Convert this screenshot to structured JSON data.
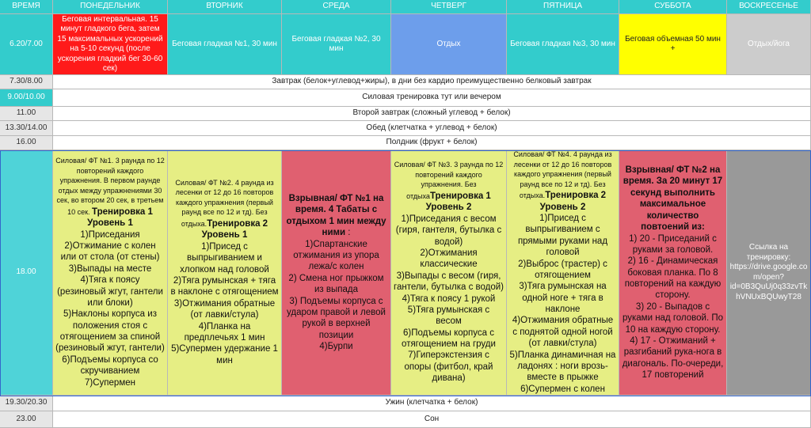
{
  "header": [
    "ВРЕМЯ",
    "ПОНЕДЕЛЬНИК",
    "ВТОРНИК",
    "СРЕДА",
    "ЧЕТВЕРГ",
    "ПЯТНИЦА",
    "СУББОТА",
    "ВОСКРЕСЕНЬЕ"
  ],
  "rows": [
    {
      "time": "6.20/7.00",
      "cells": [
        [
          {
            "text": "Беговая интервальная. 15 минут гладкого бега, затем 15 максимальных ускорений на 5-10 секунд (после ускорения гладкий бег 30-60 сек)",
            "style": "plain"
          }
        ],
        [
          {
            "text": "Беговая гладкая №1, 30 мин",
            "style": "plain"
          }
        ],
        [
          {
            "text": "Беговая гладкая №2, 30 мин",
            "style": "plain"
          }
        ],
        [
          {
            "text": "Отдых",
            "style": "plain"
          }
        ],
        [
          {
            "text": "Беговая гладкая №3, 30 мин",
            "style": "plain"
          }
        ],
        [
          {
            "text": "Беговая объемная 50 мин +",
            "style": "plain"
          }
        ],
        [
          {
            "text": "Отдых/йога",
            "style": "plain"
          }
        ]
      ]
    },
    {
      "time": "7.30/8.00",
      "span": "Завтрак (белок+углевод+жиры), в дни без кардио преимущественно белковый завтрак"
    },
    {
      "time": "9.00/10.00",
      "span": "Силовая тренировка тут или вечером"
    },
    {
      "time": "11.00",
      "span": "Второй завтрак (сложный углевод + белок)"
    },
    {
      "time": "13.30/14.00",
      "span": "Обед (клетчатка + углевод + белок)"
    },
    {
      "time": "16.00",
      "span": "Полдник (фрукт + белок)"
    },
    {
      "time": "18.00",
      "cells": [
        [
          {
            "text": "Силовая/ ФТ №1.  3 раунда по 12 повторений каждого упражнения. В первом раунде отдых между упражнениями 30 сек, во втором 20 сек, в третьем 10 сек. ",
            "style": "small"
          },
          {
            "text": "Тренировка 1 Уровень 1",
            "style": "bold"
          },
          {
            "text": "1)Приседания",
            "style": "line"
          },
          {
            "text": "2)Отжимание с колен или от стола (от стены)",
            "style": "line"
          },
          {
            "text": "3)Выпады на месте",
            "style": "line"
          },
          {
            "text": "4)Тяга к поясу (резиновый жгут, гантели или блоки)",
            "style": "line"
          },
          {
            "text": "5)Наклоны корпуса из положения стоя с отягощением за спиной (резиновый жгут, гантели)",
            "style": "line"
          },
          {
            "text": "6)Подъемы корпуса со скручиванием",
            "style": "line"
          },
          {
            "text": "7)Супермен",
            "style": "line"
          }
        ],
        [
          {
            "text": "Силовая/ ФТ №2. 4 раунда из лесенки от 12 до 16 повторов каждого упражнения (первый раунд все по 12 и тд). Без отдыха.",
            "style": "small"
          },
          {
            "text": "Тренировка 2 Уровень 1",
            "style": "bold"
          },
          {
            "text": "1)Присед с выпрыгиванием и хлопком над головой",
            "style": "line"
          },
          {
            "text": "2)Тяга румынская + тяга в наклоне с отягощением",
            "style": "line"
          },
          {
            "text": "3)Отжимания обратные (от лавки/стула)",
            "style": "line"
          },
          {
            "text": "4)Планка на предплечьях 1 мин",
            "style": "line"
          },
          {
            "text": "5)Супермен удержание 1 мин",
            "style": "line"
          }
        ],
        [
          {
            "text": "Взрывная/ ФТ №1 на время. 4 Табаты с отдыхом 1 мин между ними",
            "style": "bold"
          },
          {
            "text": " :",
            "style": "inline"
          },
          {
            "text": "1)Спартанские отжимания из упора лежа/с колен",
            "style": "line"
          },
          {
            "text": "2) Смена ног прыжком из выпада",
            "style": "line"
          },
          {
            "text": "3) Подъемы корпуса с ударом правой и левой рукой в верхней позиции",
            "style": "line"
          },
          {
            "text": "4)Бурпи",
            "style": "line"
          }
        ],
        [
          {
            "text": "Силовая/ ФТ №3. 3 раунда по 12 повторений каждого упражнения. Без отдыха",
            "style": "small"
          },
          {
            "text": "Тренировка 1 Уровень 2",
            "style": "bold"
          },
          {
            "text": "1)Приседания с весом (гиря, гантеля, бутылка с водой)",
            "style": "line"
          },
          {
            "text": "2)Отжимания классические",
            "style": "line"
          },
          {
            "text": "3)Выпады с весом (гиря, гантели, бутылка с водой)",
            "style": "line"
          },
          {
            "text": "4)Тяга к поясу 1 рукой",
            "style": "line"
          },
          {
            "text": "5)Тяга румынская с весом",
            "style": "line"
          },
          {
            "text": "6)Подъемы корпуса с отягощением на груди",
            "style": "line"
          },
          {
            "text": "7)Гиперэкстензия с опоры (фитбол, край дивана)",
            "style": "line"
          }
        ],
        [
          {
            "text": "Силовая/ ФТ №4. 4 раунда из лесенки от 12 до 16 повторов каждого упражнения (первый раунд все по 12 и тд). Без отдыха.",
            "style": "small"
          },
          {
            "text": "Тренировка 2 Уровень 2",
            "style": "bold"
          },
          {
            "text": "1)Присед с выпрыгиванием с прямыми руками над головой",
            "style": "line"
          },
          {
            "text": "2)Выброс (трастер) с отягощением",
            "style": "line"
          },
          {
            "text": "3)Тяга румынская на одной ноге  + тяга в наклоне",
            "style": "line"
          },
          {
            "text": "4)Отжимания обратные с поднятой одной ногой (от лавки/стула)",
            "style": "line"
          },
          {
            "text": "5)Планка динамичная на ладонях : ноги врозь-вместе в прыжке",
            "style": "line"
          },
          {
            "text": "6)Супермен с колен",
            "style": "line"
          }
        ],
        [
          {
            "text": "Взрывная/ ФТ №2 на время. За 20 минут 17 секунд выполнить максимальное количество повтоений из:",
            "style": "bold"
          },
          {
            "text": "1) 20 - Приседаний с руками за головой.",
            "style": "line"
          },
          {
            "text": "2) 16 - Динамическая боковая планка. По 8 повторений на каждую сторону.",
            "style": "line"
          },
          {
            "text": "3) 20 - Выпадов с руками над головой. По 10 на каждую сторону.",
            "style": "line"
          },
          {
            "text": "4) 17 - Отжиманий + разгибаний рука-нога в диагональ. По-очереди, 17 повторений",
            "style": "line"
          }
        ],
        [
          {
            "text": "Ссылка на тренировку: https://drive.google.com/open?id=0B3QuUj0q33zvTkhVNUxBQUwyT28",
            "style": "plain"
          }
        ]
      ]
    },
    {
      "time": "19.30/20.30",
      "span": "Ужин (клетчатка + белок)"
    },
    {
      "time": "23.00",
      "span": "Сон"
    }
  ]
}
